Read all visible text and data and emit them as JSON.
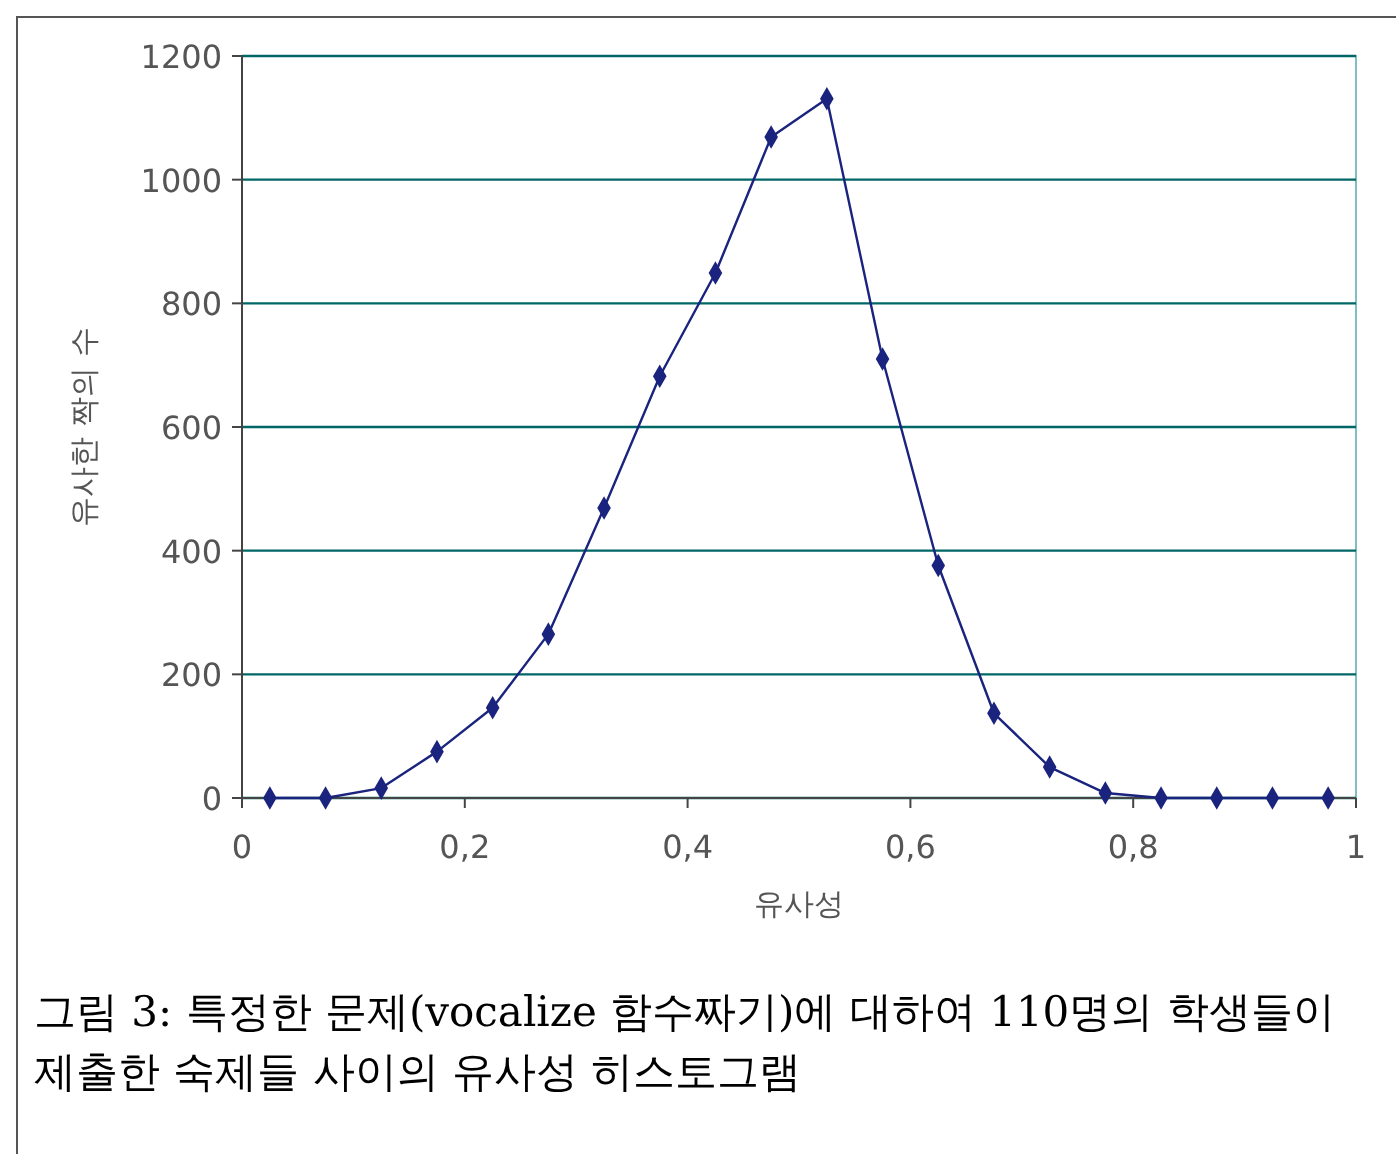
{
  "chart_data": {
    "type": "line",
    "xlabel": "유사성",
    "ylabel": "유사한 짝의 수",
    "x": [
      0.025,
      0.075,
      0.125,
      0.175,
      0.225,
      0.275,
      0.325,
      0.375,
      0.425,
      0.475,
      0.525,
      0.575,
      0.625,
      0.675,
      0.725,
      0.775,
      0.825,
      0.875,
      0.925,
      0.975
    ],
    "series": [
      {
        "color": "#1a237e",
        "values": [
          0,
          0,
          16,
          75,
          146,
          265,
          469,
          682,
          849,
          1069,
          1131,
          710,
          376,
          137,
          50,
          8,
          0,
          0,
          0,
          0
        ]
      }
    ],
    "xlim": [
      0,
      1
    ],
    "xticks": [
      0,
      {
        "value": 0.2,
        "label": "0,2"
      },
      {
        "value": 0.4,
        "label": "0,4"
      },
      {
        "value": 0.6,
        "label": "0,6"
      },
      {
        "value": 0.8,
        "label": "0,8"
      },
      1
    ],
    "ylim": [
      0,
      1200
    ],
    "yticks": [
      0,
      200,
      400,
      600,
      800,
      1000,
      1200
    ],
    "grid": "y",
    "marker": "diamond",
    "line_style": "solid",
    "annotations": [
      "그림 3: 특정한 문제(vocalize 함수짜기)에 대하여 110명의 학생들이 제출한 숙제들 사이의 유사성 히스토그램"
    ]
  }
}
